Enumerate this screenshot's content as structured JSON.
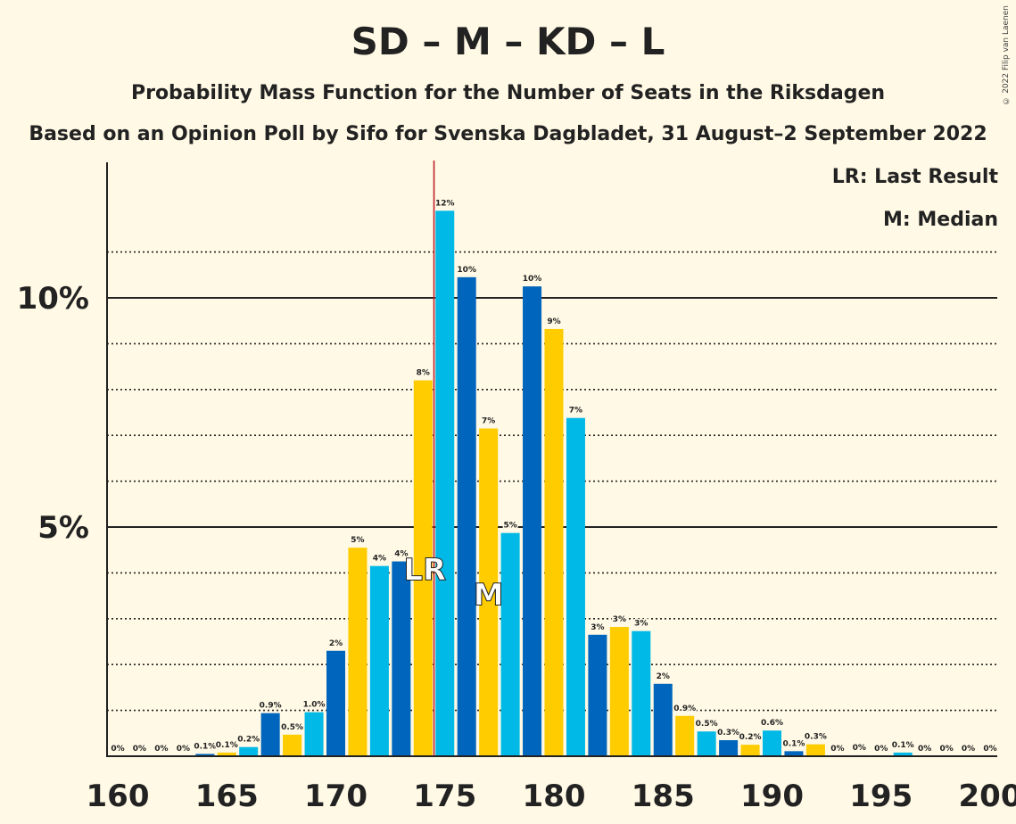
{
  "header": {
    "title": "SD – M – KD – L",
    "subtitle": "Probability Mass Function for the Number of Seats in the Riksdagen",
    "subtitle2": "Based on an Opinion Poll by Sifo for Svenska Dagbladet, 31 August–2 September 2022",
    "copyright": "© 2022 Filip van Laenen"
  },
  "legend": {
    "last_result": "LR: Last Result",
    "median": "M: Median"
  },
  "colors": {
    "background": "#FFF9E5",
    "bar_palette": [
      "#0065BD",
      "#FFCC00",
      "#00B9E6"
    ],
    "last_result_line": "#C0202A"
  },
  "chart_data": {
    "type": "bar",
    "x": [
      160,
      161,
      162,
      163,
      164,
      165,
      166,
      167,
      168,
      169,
      170,
      171,
      172,
      173,
      174,
      175,
      176,
      177,
      178,
      179,
      180,
      181,
      182,
      183,
      184,
      185,
      186,
      187,
      188,
      189,
      190,
      191,
      192,
      193,
      194,
      195,
      196,
      197,
      198,
      199,
      200
    ],
    "values": [
      0,
      0,
      0,
      0,
      0.05,
      0.08,
      0.2,
      0.94,
      0.47,
      0.96,
      2.3,
      4.55,
      4.15,
      4.25,
      8.2,
      11.9,
      10.45,
      7.15,
      4.87,
      10.25,
      9.32,
      7.38,
      2.65,
      2.82,
      2.73,
      1.58,
      0.88,
      0.54,
      0.35,
      0.25,
      0.56,
      0.11,
      0.26,
      0,
      0.02,
      0,
      0.08,
      0,
      0,
      0,
      0
    ],
    "labels": [
      "0%",
      "0%",
      "0%",
      "0%",
      "0.1%",
      "0.1%",
      "0.2%",
      "0.9%",
      "0.5%",
      "1.0%",
      "2%",
      "5%",
      "4%",
      "4%",
      "8%",
      "12%",
      "10%",
      "7%",
      "5%",
      "10%",
      "9%",
      "7%",
      "3%",
      "3%",
      "3%",
      "2%",
      "0.9%",
      "0.5%",
      "0.3%",
      "0.2%",
      "0.6%",
      "0.1%",
      "0.3%",
      "0%",
      "0%",
      "0%",
      "0.1%",
      "0%",
      "0%",
      "0%",
      "0%"
    ],
    "x_ticks": [
      160,
      165,
      170,
      175,
      180,
      185,
      190,
      195,
      200
    ],
    "y_ticks": [
      5,
      10
    ],
    "y_tick_labels": [
      "5%",
      "10%"
    ],
    "ylim": [
      0,
      13
    ],
    "last_result_seat": 175,
    "last_result_label": "LR",
    "median_seat": 177,
    "median_label": "M",
    "major_gridlines": [
      5,
      10
    ],
    "minor_gridlines": [
      1,
      2,
      3,
      4,
      6,
      7,
      8,
      9,
      11
    ]
  }
}
